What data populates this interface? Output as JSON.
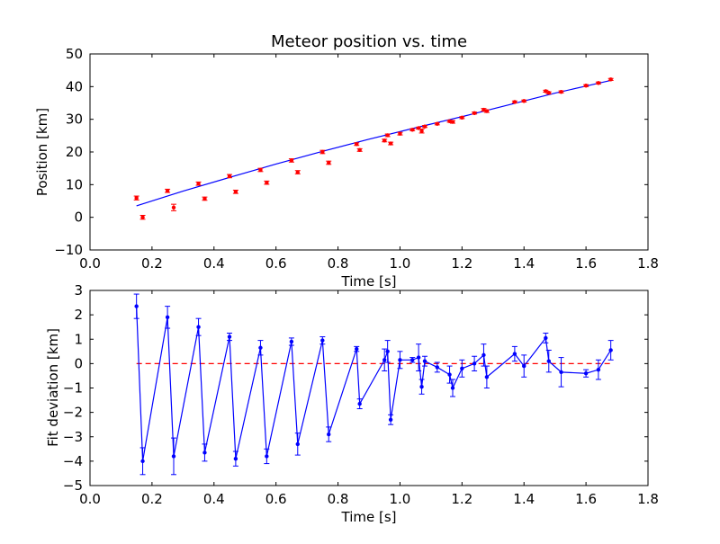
{
  "chart_data": [
    {
      "type": "scatter",
      "title": "Meteor position vs. time",
      "xlabel": "Time [s]",
      "ylabel": "Position [km]",
      "xlim": [
        0.0,
        1.8
      ],
      "ylim": [
        -10,
        50
      ],
      "xticks": [
        "0.0",
        "0.2",
        "0.4",
        "0.6",
        "0.8",
        "1.0",
        "1.2",
        "1.4",
        "1.6",
        "1.8"
      ],
      "yticks": [
        "−10",
        "0",
        "10",
        "20",
        "30",
        "40",
        "50"
      ],
      "grid": false,
      "colors": {
        "points": "#ff0000",
        "fit": "#0000ff"
      },
      "series": [
        {
          "kind": "errorbar-points",
          "x": [
            0.15,
            0.17,
            0.25,
            0.27,
            0.35,
            0.37,
            0.45,
            0.47,
            0.55,
            0.57,
            0.65,
            0.67,
            0.75,
            0.77,
            0.86,
            0.87,
            0.95,
            0.96,
            0.97,
            1.0,
            1.04,
            1.06,
            1.07,
            1.08,
            1.12,
            1.16,
            1.17,
            1.2,
            1.24,
            1.27,
            1.28,
            1.37,
            1.4,
            1.47,
            1.48,
            1.52,
            1.6,
            1.64,
            1.68
          ],
          "y": [
            5.9,
            0.0,
            8.1,
            3.0,
            10.3,
            5.7,
            12.6,
            7.8,
            14.5,
            10.6,
            17.4,
            13.8,
            20.0,
            16.7,
            22.4,
            20.6,
            23.5,
            25.1,
            22.6,
            25.6,
            26.8,
            27.3,
            26.4,
            27.8,
            28.6,
            29.4,
            29.2,
            30.5,
            31.9,
            32.9,
            32.5,
            35.3,
            35.6,
            38.6,
            38.1,
            38.4,
            40.3,
            41.1,
            42.2
          ],
          "yerr": [
            0.6,
            0.6,
            0.5,
            1.0,
            0.5,
            0.5,
            0.5,
            0.5,
            0.5,
            0.5,
            0.5,
            0.5,
            0.5,
            0.5,
            0.4,
            0.4,
            0.4,
            0.4,
            0.4,
            0.4,
            0.3,
            0.3,
            0.6,
            0.3,
            0.3,
            0.3,
            0.4,
            0.3,
            0.3,
            0.4,
            0.4,
            0.3,
            0.3,
            0.3,
            0.3,
            0.3,
            0.3,
            0.3,
            0.3
          ]
        },
        {
          "kind": "fit-line",
          "x": [
            0.15,
            0.3,
            0.45,
            0.6,
            0.75,
            0.9,
            1.05,
            1.2,
            1.35,
            1.5,
            1.68
          ],
          "y": [
            3.5,
            8.0,
            12.2,
            16.3,
            20.2,
            23.9,
            27.4,
            30.8,
            34.4,
            38.0,
            41.9
          ]
        }
      ]
    },
    {
      "type": "line",
      "title": "",
      "xlabel": "Time [s]",
      "ylabel": "Fit deviation [km]",
      "xlim": [
        0.0,
        1.8
      ],
      "ylim": [
        -5,
        3
      ],
      "xticks": [
        "0.0",
        "0.2",
        "0.4",
        "0.6",
        "0.8",
        "1.0",
        "1.2",
        "1.4",
        "1.6",
        "1.8"
      ],
      "yticks": [
        "−5",
        "−4",
        "−3",
        "−2",
        "−1",
        "0",
        "1",
        "2",
        "3"
      ],
      "grid": false,
      "colors": {
        "deviation": "#0000ff",
        "zero": "#ff0000"
      },
      "series": [
        {
          "kind": "deviation",
          "x": [
            0.15,
            0.17,
            0.25,
            0.27,
            0.35,
            0.37,
            0.45,
            0.47,
            0.55,
            0.57,
            0.65,
            0.67,
            0.75,
            0.77,
            0.86,
            0.87,
            0.95,
            0.96,
            0.97,
            1.0,
            1.04,
            1.06,
            1.07,
            1.08,
            1.12,
            1.16,
            1.17,
            1.2,
            1.24,
            1.27,
            1.28,
            1.37,
            1.4,
            1.47,
            1.48,
            1.52,
            1.6,
            1.64,
            1.68
          ],
          "y": [
            2.35,
            -4.0,
            1.9,
            -3.8,
            1.5,
            -3.65,
            1.1,
            -3.9,
            0.65,
            -3.8,
            0.9,
            -3.3,
            0.95,
            -2.9,
            0.6,
            -1.65,
            0.15,
            0.5,
            -2.3,
            0.15,
            0.15,
            0.25,
            -0.95,
            0.1,
            -0.15,
            -0.45,
            -1.0,
            -0.2,
            0.0,
            0.35,
            -0.55,
            0.4,
            -0.1,
            1.05,
            0.1,
            -0.35,
            -0.4,
            -0.25,
            0.55
          ],
          "yerr": [
            0.5,
            0.55,
            0.45,
            0.75,
            0.35,
            0.35,
            0.15,
            0.3,
            0.3,
            0.3,
            0.15,
            0.45,
            0.15,
            0.3,
            0.1,
            0.2,
            0.45,
            0.45,
            0.2,
            0.35,
            0.1,
            0.55,
            0.3,
            0.2,
            0.2,
            0.35,
            0.35,
            0.35,
            0.3,
            0.45,
            0.45,
            0.3,
            0.45,
            0.2,
            0.45,
            0.6,
            0.15,
            0.4,
            0.4
          ]
        },
        {
          "kind": "zero-line",
          "x": [
            0.15,
            1.68
          ],
          "y": [
            0,
            0
          ]
        }
      ]
    }
  ]
}
